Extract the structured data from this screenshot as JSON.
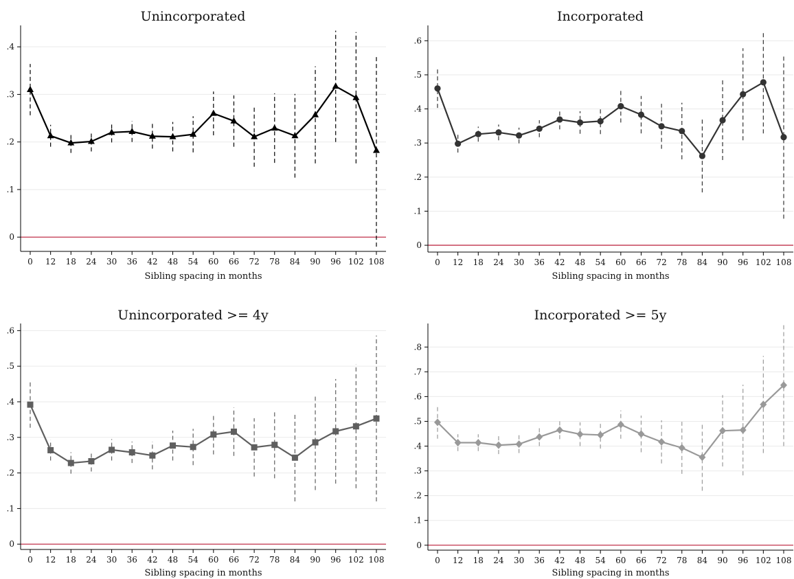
{
  "figure": {
    "background": "#ffffff",
    "grid_color": "#eaeaea",
    "axis_color": "#000000",
    "zero_line_color": "#c0304a"
  },
  "chart_data": [
    {
      "type": "line",
      "title": "Unincorporated",
      "xlabel": "Sibling spacing in months",
      "ylabel": "",
      "categories": [
        "0",
        "12",
        "18",
        "24",
        "30",
        "36",
        "42",
        "48",
        "54",
        "60",
        "66",
        "72",
        "78",
        "84",
        "90",
        "96",
        "102",
        "108"
      ],
      "values": [
        0.31,
        0.213,
        0.198,
        0.201,
        0.22,
        0.222,
        0.212,
        0.211,
        0.216,
        0.26,
        0.244,
        0.211,
        0.229,
        0.213,
        0.257,
        0.317,
        0.293,
        0.182
      ],
      "ci_low": [
        0.256,
        0.19,
        0.177,
        0.18,
        0.199,
        0.2,
        0.186,
        0.18,
        0.178,
        0.214,
        0.19,
        0.148,
        0.156,
        0.125,
        0.155,
        0.2,
        0.155,
        -0.02
      ],
      "ci_high": [
        0.364,
        0.236,
        0.219,
        0.222,
        0.241,
        0.244,
        0.238,
        0.242,
        0.254,
        0.306,
        0.298,
        0.274,
        0.302,
        0.301,
        0.359,
        0.434,
        0.431,
        0.384
      ],
      "ylim": [
        -0.03,
        0.445
      ],
      "yticks": [
        0,
        0.1,
        0.2,
        0.3,
        0.4
      ],
      "ytick_labels": [
        "0",
        ".1",
        ".2",
        ".3",
        ".4"
      ],
      "marker": "triangle",
      "color": "#000000",
      "grid": true,
      "reference_line": 0
    },
    {
      "type": "line",
      "title": "Incorporated",
      "xlabel": "Sibling spacing in months",
      "ylabel": "",
      "categories": [
        "0",
        "12",
        "18",
        "24",
        "30",
        "36",
        "42",
        "48",
        "54",
        "60",
        "66",
        "72",
        "78",
        "84",
        "90",
        "96",
        "102",
        "108"
      ],
      "values": [
        0.46,
        0.298,
        0.326,
        0.331,
        0.322,
        0.342,
        0.369,
        0.36,
        0.364,
        0.408,
        0.383,
        0.349,
        0.335,
        0.262,
        0.367,
        0.443,
        0.478,
        0.317
      ],
      "ci_low": [
        0.403,
        0.272,
        0.304,
        0.308,
        0.299,
        0.317,
        0.34,
        0.327,
        0.326,
        0.36,
        0.328,
        0.283,
        0.252,
        0.155,
        0.25,
        0.308,
        0.328,
        0.078
      ],
      "ci_high": [
        0.517,
        0.324,
        0.348,
        0.354,
        0.345,
        0.367,
        0.398,
        0.393,
        0.402,
        0.456,
        0.438,
        0.415,
        0.418,
        0.369,
        0.484,
        0.578,
        0.628,
        0.556
      ],
      "ylim": [
        -0.02,
        0.645
      ],
      "yticks": [
        0,
        0.1,
        0.2,
        0.3,
        0.4,
        0.5,
        0.6
      ],
      "ytick_labels": [
        "0",
        ".1",
        ".2",
        ".3",
        ".4",
        ".5",
        ".6"
      ],
      "marker": "circle",
      "color": "#333333",
      "grid": true,
      "reference_line": 0
    },
    {
      "type": "line",
      "title": "Unincorporated >= 4y",
      "xlabel": "Sibling spacing in months",
      "ylabel": "",
      "categories": [
        "0",
        "12",
        "18",
        "24",
        "30",
        "36",
        "42",
        "48",
        "54",
        "60",
        "66",
        "72",
        "78",
        "84",
        "90",
        "96",
        "102",
        "108"
      ],
      "values": [
        0.392,
        0.264,
        0.228,
        0.233,
        0.265,
        0.258,
        0.249,
        0.277,
        0.273,
        0.308,
        0.316,
        0.272,
        0.279,
        0.243,
        0.286,
        0.317,
        0.331,
        0.353
      ],
      "ci_low": [
        0.327,
        0.235,
        0.198,
        0.204,
        0.235,
        0.228,
        0.21,
        0.235,
        0.222,
        0.252,
        0.248,
        0.19,
        0.185,
        0.12,
        0.152,
        0.17,
        0.157,
        0.12
      ],
      "ci_high": [
        0.457,
        0.293,
        0.258,
        0.262,
        0.295,
        0.288,
        0.288,
        0.319,
        0.324,
        0.364,
        0.384,
        0.354,
        0.373,
        0.366,
        0.42,
        0.464,
        0.505,
        0.586
      ],
      "ylim": [
        -0.015,
        0.62
      ],
      "yticks": [
        0,
        0.1,
        0.2,
        0.3,
        0.4,
        0.5,
        0.6
      ],
      "ytick_labels": [
        "0",
        ".1",
        ".2",
        ".3",
        ".4",
        ".5",
        ".6"
      ],
      "marker": "square",
      "color": "#5f5f5f",
      "grid": true,
      "reference_line": 0
    },
    {
      "type": "line",
      "title": "Incorporated >= 5y",
      "xlabel": "Sibling spacing in months",
      "ylabel": "",
      "categories": [
        "0",
        "12",
        "18",
        "24",
        "30",
        "36",
        "42",
        "48",
        "54",
        "60",
        "66",
        "72",
        "78",
        "84",
        "90",
        "96",
        "102",
        "108"
      ],
      "values": [
        0.496,
        0.414,
        0.414,
        0.404,
        0.408,
        0.437,
        0.465,
        0.448,
        0.445,
        0.487,
        0.449,
        0.417,
        0.393,
        0.355,
        0.462,
        0.465,
        0.568,
        0.646
      ],
      "ci_low": [
        0.43,
        0.38,
        0.38,
        0.368,
        0.372,
        0.4,
        0.428,
        0.4,
        0.39,
        0.43,
        0.375,
        0.33,
        0.288,
        0.22,
        0.318,
        0.282,
        0.372,
        0.4
      ],
      "ci_high": [
        0.562,
        0.448,
        0.448,
        0.44,
        0.444,
        0.474,
        0.502,
        0.496,
        0.5,
        0.544,
        0.523,
        0.504,
        0.498,
        0.49,
        0.606,
        0.648,
        0.764,
        0.892
      ],
      "ylim": [
        -0.02,
        0.895
      ],
      "yticks": [
        0,
        0.1,
        0.2,
        0.3,
        0.4,
        0.5,
        0.6,
        0.7,
        0.8
      ],
      "ytick_labels": [
        "0",
        ".1",
        ".2",
        ".3",
        ".4",
        ".5",
        ".6",
        ".7",
        ".8"
      ],
      "marker": "diamond",
      "color": "#999999",
      "grid": true,
      "reference_line": 0
    }
  ]
}
